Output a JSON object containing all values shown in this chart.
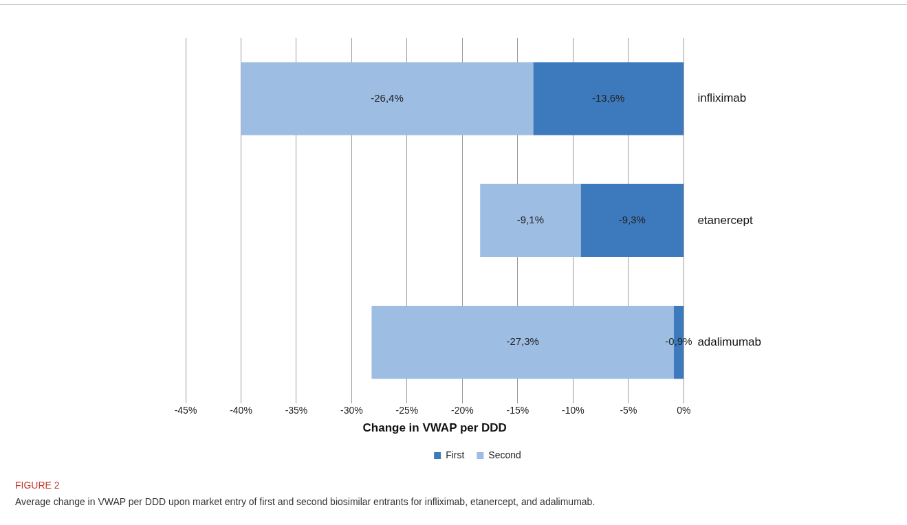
{
  "chart_data": {
    "type": "bar",
    "orientation": "horizontal",
    "stacked": true,
    "title": "FIGURE 2",
    "subtitle": "Average change in VWAP per DDD upon market entry of first and second biosimilar entrants for infliximab, etanercept, and adalimumab.",
    "xlabel": "Change in VWAP per DDD",
    "categories": [
      "infliximab",
      "etanercept",
      "adalimumab"
    ],
    "series": [
      {
        "name": "First",
        "color": "#3d7abd",
        "values": [
          -13.6,
          -9.3,
          -0.9
        ],
        "value_labels": [
          "-13,6%",
          "-9,3%",
          "-0,9%"
        ]
      },
      {
        "name": "Second",
        "color": "#9ebde3",
        "values": [
          -26.4,
          -9.1,
          -27.3
        ],
        "value_labels": [
          "-26,4%",
          "-9,1%",
          "-27,3%"
        ]
      }
    ],
    "xlim": [
      -45,
      0
    ],
    "xticks": [
      {
        "value": -45,
        "label": "-45%"
      },
      {
        "value": -40,
        "label": "-40%"
      },
      {
        "value": -35,
        "label": "-35%"
      },
      {
        "value": -30,
        "label": "-30%"
      },
      {
        "value": -25,
        "label": "-25%"
      },
      {
        "value": -20,
        "label": "-20%"
      },
      {
        "value": -15,
        "label": "-15%"
      },
      {
        "value": -10,
        "label": "-10%"
      },
      {
        "value": -5,
        "label": "-5%"
      },
      {
        "value": 0,
        "label": "0%"
      }
    ],
    "grid": "x",
    "legend": "bottom"
  }
}
